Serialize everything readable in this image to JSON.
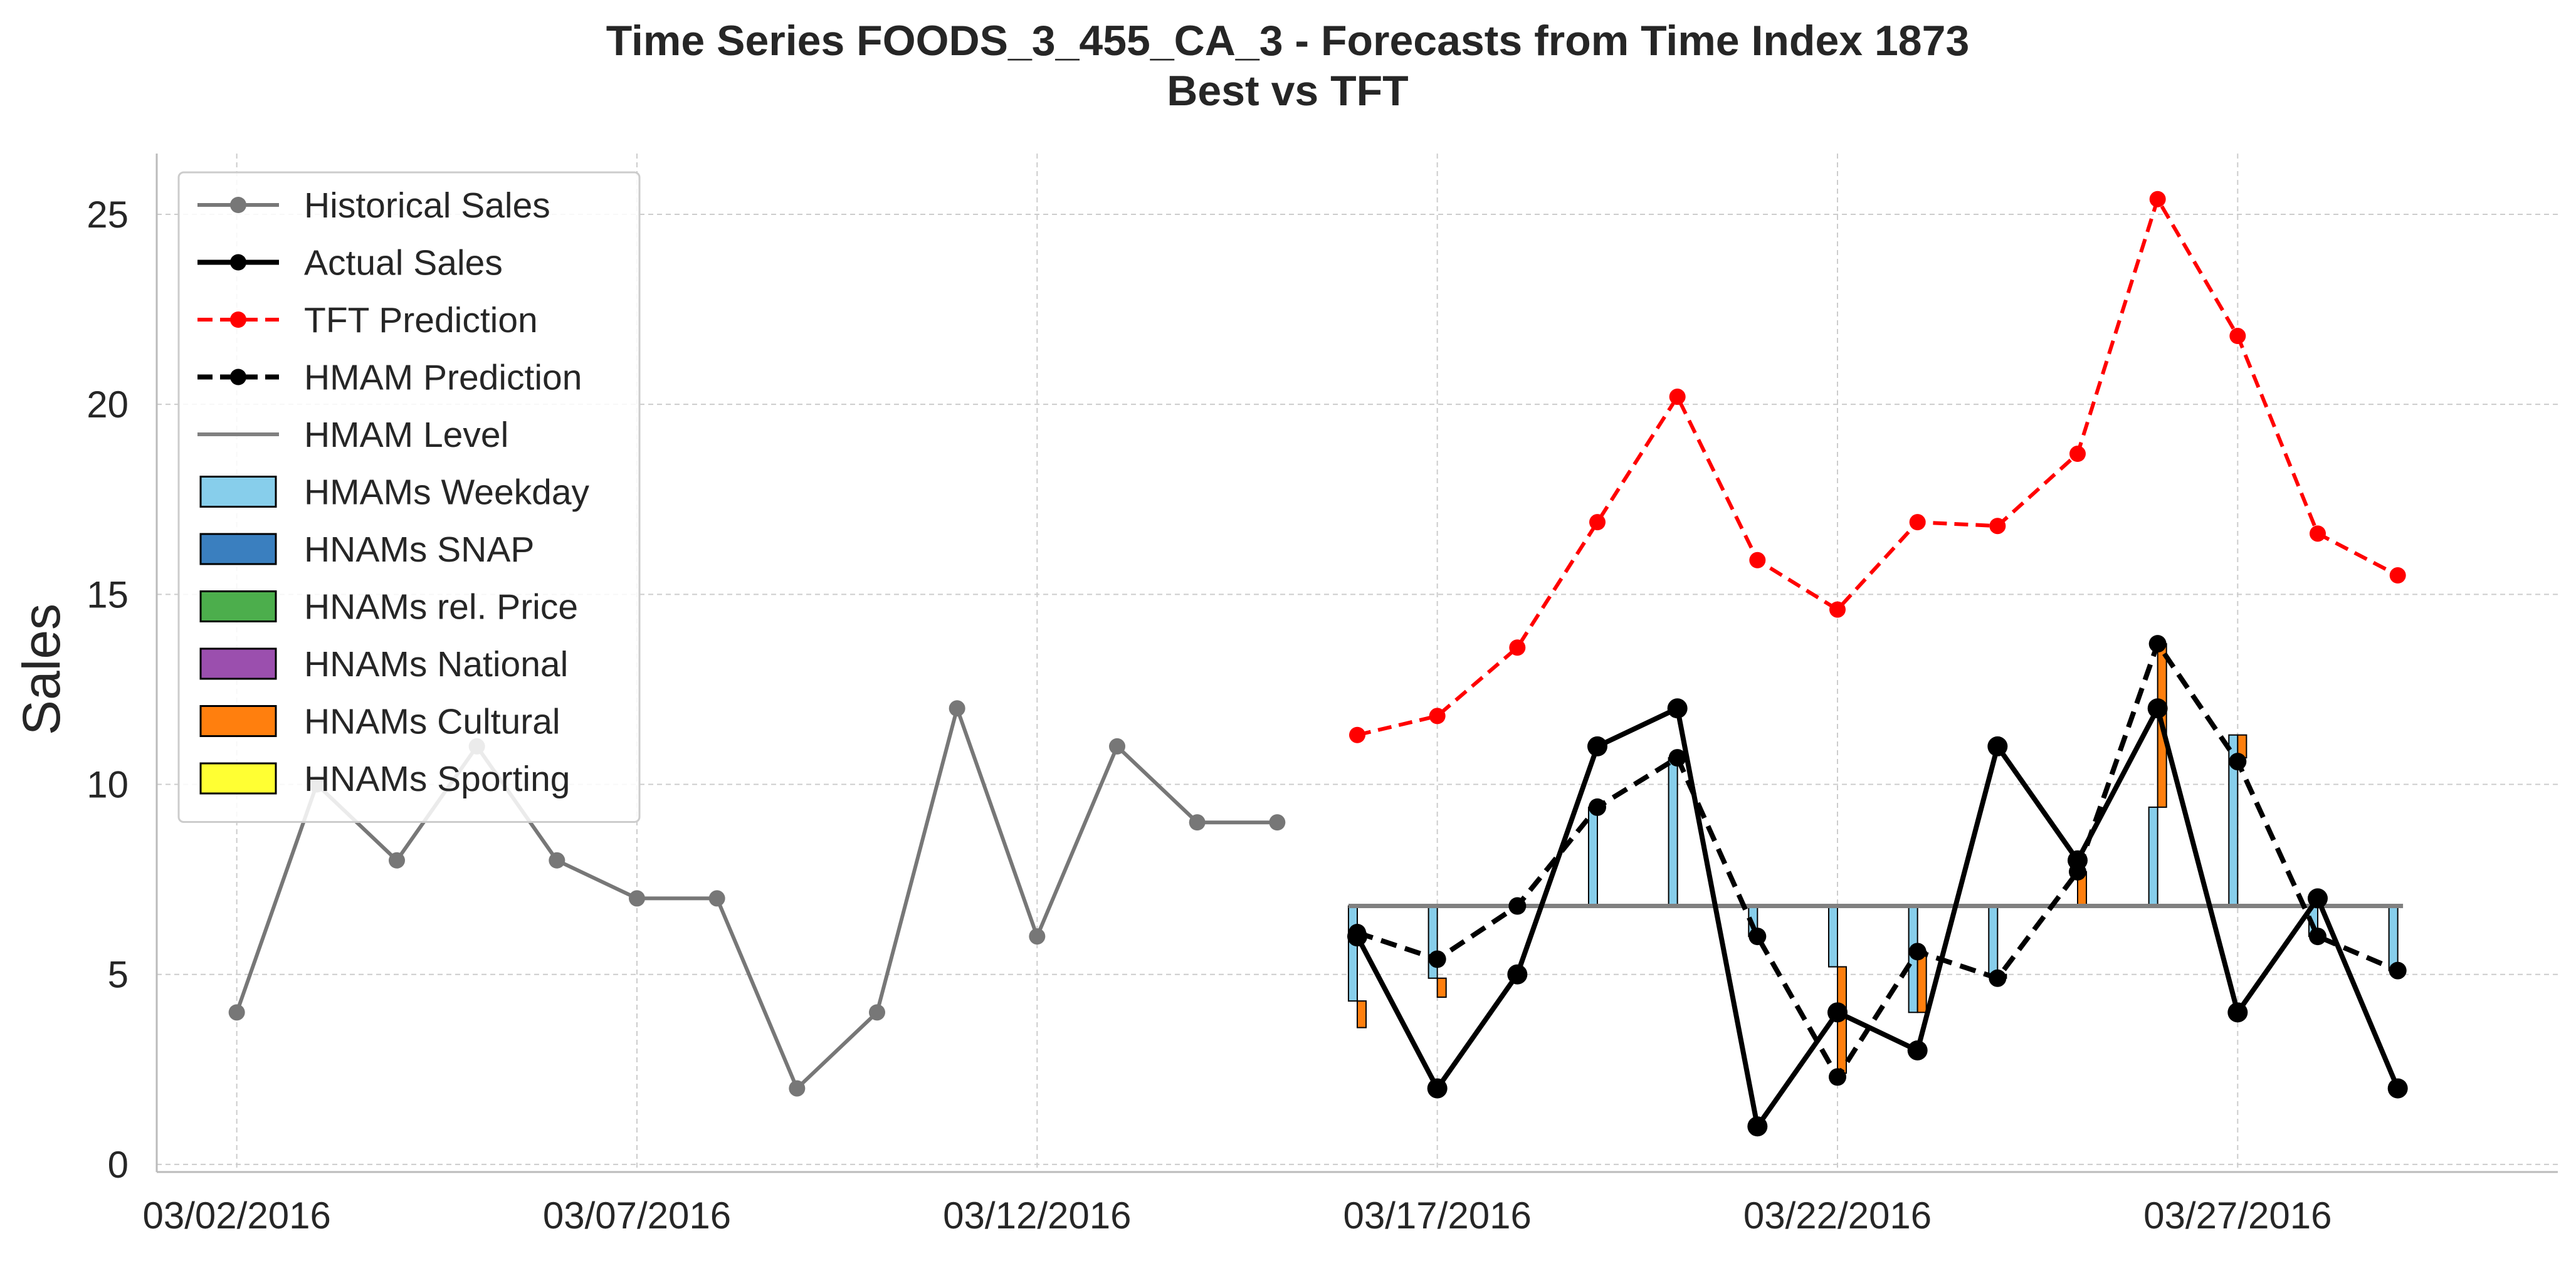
{
  "chart_data": {
    "type": "line",
    "title": "Time Series FOODS_3_455_CA_3 - Forecasts from Time Index 1873",
    "subtitle": "Best vs TFT",
    "xlabel": "",
    "ylabel": "Sales",
    "xlim": [
      "03/01/2016",
      "03/31/2016"
    ],
    "ylim": [
      -0.2,
      26.6
    ],
    "x_ticks": [
      "03/02/2016",
      "03/07/2016",
      "03/12/2016",
      "03/17/2016",
      "03/22/2016",
      "03/27/2016"
    ],
    "y_ticks": [
      0,
      5,
      10,
      15,
      20,
      25
    ],
    "grid": true,
    "legend_position": "upper-left",
    "colors": {
      "historical": "#777777",
      "actual": "#000000",
      "tft": "#ff0000",
      "hmam_prediction": "#000000",
      "hmam_level": "#808080",
      "weekday": "#87ceeb",
      "snap": "#3a7fbf",
      "price": "#4cae4c",
      "national": "#9b4fae",
      "cultural": "#ff7f0e",
      "sporting": "#ffff33"
    },
    "legend": [
      {
        "label": "Historical Sales",
        "kind": "line-marker",
        "color": "#777777",
        "dash": "solid",
        "width": 6
      },
      {
        "label": "Actual Sales",
        "kind": "line-marker",
        "color": "#000000",
        "dash": "solid",
        "width": 8
      },
      {
        "label": "TFT Prediction",
        "kind": "line-marker",
        "color": "#ff0000",
        "dash": "dashed",
        "width": 6
      },
      {
        "label": "HMAM Prediction",
        "kind": "line-marker",
        "color": "#000000",
        "dash": "dashed",
        "width": 8
      },
      {
        "label": "HMAM Level",
        "kind": "line",
        "color": "#808080",
        "dash": "solid",
        "width": 6
      },
      {
        "label": "HMAMs Weekday",
        "kind": "patch",
        "color": "#87ceeb"
      },
      {
        "label": "HNAMs SNAP",
        "kind": "patch",
        "color": "#3a7fbf"
      },
      {
        "label": "HNAMs rel. Price",
        "kind": "patch",
        "color": "#4cae4c"
      },
      {
        "label": "HNAMs National",
        "kind": "patch",
        "color": "#9b4fae"
      },
      {
        "label": "HNAMs Cultural",
        "kind": "patch",
        "color": "#ff7f0e"
      },
      {
        "label": "HNAMs Sporting",
        "kind": "patch",
        "color": "#ffff33"
      }
    ],
    "hmam_level": 6.8,
    "historical": {
      "x": [
        "03/02/2016",
        "03/03/2016",
        "03/04/2016",
        "03/05/2016",
        "03/06/2016",
        "03/07/2016",
        "03/08/2016",
        "03/09/2016",
        "03/10/2016",
        "03/11/2016",
        "03/12/2016",
        "03/13/2016",
        "03/14/2016",
        "03/15/2016"
      ],
      "y": [
        4,
        10,
        8,
        11,
        8,
        7,
        7,
        2,
        4,
        12,
        6,
        11,
        9,
        9
      ]
    },
    "forecast_dates": [
      "03/16/2016",
      "03/17/2016",
      "03/18/2016",
      "03/19/2016",
      "03/20/2016",
      "03/21/2016",
      "03/22/2016",
      "03/23/2016",
      "03/24/2016",
      "03/25/2016",
      "03/26/2016",
      "03/27/2016",
      "03/28/2016",
      "03/29/2016"
    ],
    "actual": [
      6,
      2,
      5,
      11,
      12,
      1,
      4,
      3,
      11,
      8,
      12,
      4,
      7,
      2
    ],
    "tft_prediction": [
      11.3,
      11.8,
      13.6,
      16.9,
      20.2,
      15.9,
      14.6,
      16.9,
      16.8,
      18.7,
      25.4,
      21.8,
      16.6,
      15.5
    ],
    "hmam_prediction": [
      6.1,
      5.4,
      6.8,
      9.4,
      10.7,
      6.0,
      2.3,
      5.6,
      4.9,
      7.7,
      13.7,
      10.6,
      6.0,
      5.1
    ],
    "weekday_effect": [
      -2.5,
      -1.9,
      0.0,
      2.6,
      3.9,
      -0.8,
      -1.6,
      -2.8,
      -1.8,
      0.0,
      2.6,
      4.5,
      -0.8,
      -1.7
    ],
    "cultural_effect": [
      -0.7,
      -0.5,
      0.0,
      0.0,
      0.0,
      0.0,
      -2.8,
      1.6,
      -0.1,
      0.9,
      4.3,
      -0.6,
      0.0,
      0.0
    ]
  }
}
